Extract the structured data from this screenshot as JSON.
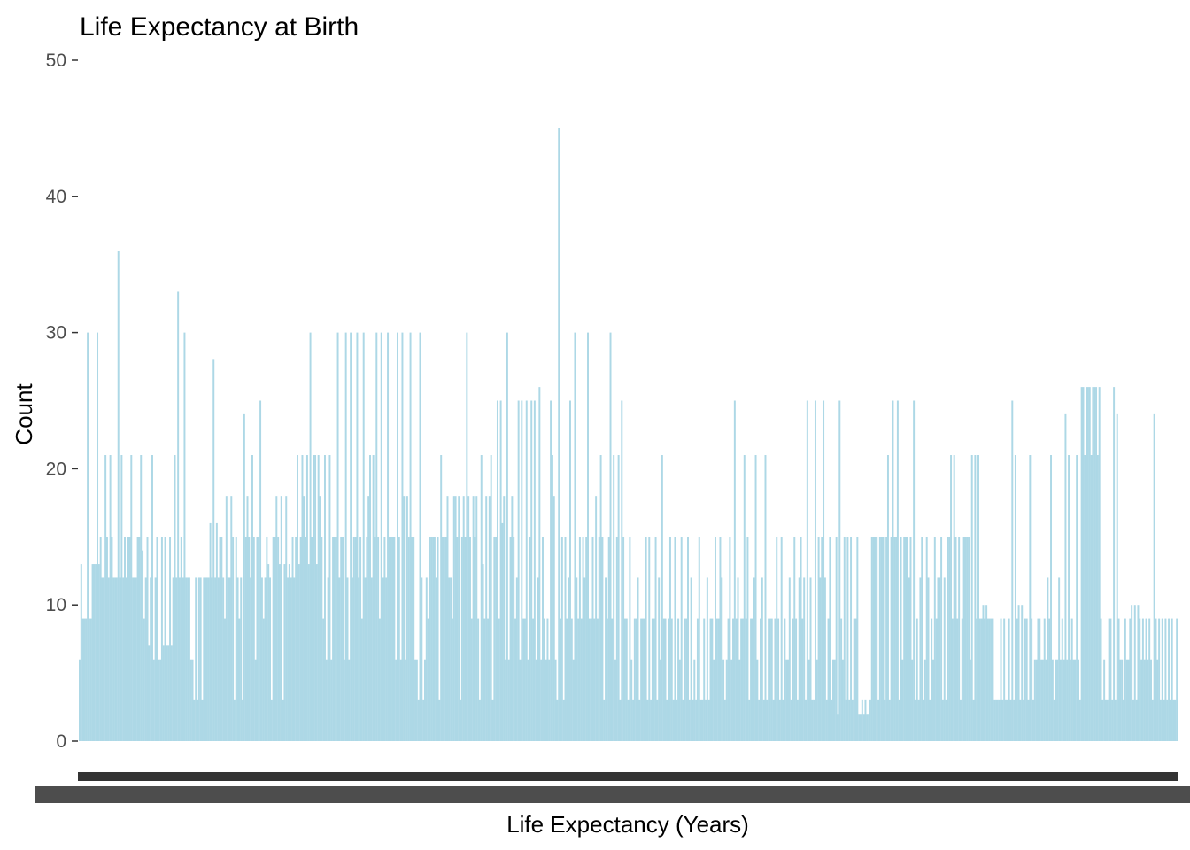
{
  "chart_data": {
    "type": "bar",
    "title": "Life Expectancy at Birth",
    "xlabel": "Life Expectancy (Years)",
    "ylabel": "Count",
    "ylim": [
      0,
      50
    ],
    "yticks": [
      0,
      10,
      20,
      30,
      40,
      50
    ],
    "grid": false,
    "legend": "none",
    "bar_color": "#add8e6",
    "x_tick_color": "#4d4d4d",
    "note": "x-axis tick labels overprint into a solid dark band and are unreadable; categories are individual life-expectancy values (too numerous to read)",
    "values": [
      6,
      13,
      9,
      9,
      9,
      30,
      9,
      9,
      13,
      13,
      13,
      30,
      13,
      15,
      12,
      12,
      21,
      15,
      12,
      21,
      15,
      12,
      12,
      12,
      36,
      12,
      21,
      12,
      15,
      12,
      15,
      15,
      21,
      12,
      12,
      12,
      15,
      15,
      21,
      14,
      9,
      12,
      15,
      7,
      12,
      21,
      6,
      12,
      15,
      6,
      6,
      15,
      7,
      15,
      7,
      7,
      15,
      7,
      12,
      21,
      12,
      33,
      12,
      15,
      12,
      30,
      12,
      12,
      12,
      6,
      6,
      3,
      12,
      3,
      12,
      12,
      3,
      12,
      12,
      12,
      12,
      16,
      12,
      28,
      12,
      16,
      12,
      15,
      15,
      12,
      9,
      18,
      12,
      12,
      18,
      15,
      3,
      15,
      12,
      9,
      12,
      3,
      24,
      15,
      18,
      15,
      12,
      21,
      15,
      6,
      15,
      15,
      25,
      12,
      9,
      12,
      15,
      13,
      12,
      3,
      15,
      15,
      18,
      15,
      13,
      18,
      3,
      13,
      18,
      12,
      13,
      12,
      15,
      12,
      15,
      21,
      13,
      15,
      21,
      18,
      15,
      21,
      13,
      30,
      15,
      21,
      21,
      13,
      21,
      18,
      15,
      9,
      21,
      6,
      12,
      21,
      6,
      15,
      15,
      15,
      30,
      12,
      15,
      15,
      6,
      30,
      12,
      6,
      30,
      12,
      15,
      15,
      30,
      12,
      15,
      9,
      30,
      12,
      15,
      18,
      21,
      12,
      21,
      15,
      30,
      15,
      9,
      30,
      12,
      15,
      12,
      30,
      15,
      15,
      15,
      15,
      6,
      30,
      15,
      6,
      30,
      18,
      6,
      18,
      15,
      30,
      15,
      15,
      6,
      6,
      3,
      30,
      12,
      3,
      6,
      12,
      9,
      15,
      15,
      15,
      15,
      12,
      15,
      3,
      21,
      15,
      15,
      15,
      18,
      12,
      12,
      9,
      18,
      18,
      15,
      18,
      3,
      15,
      18,
      15,
      30,
      18,
      15,
      9,
      18,
      15,
      18,
      9,
      3,
      21,
      13,
      9,
      18,
      9,
      18,
      21,
      3,
      15,
      15,
      25,
      9,
      25,
      16,
      18,
      6,
      30,
      6,
      15,
      18,
      15,
      9,
      12,
      25,
      6,
      25,
      9,
      9,
      25,
      6,
      15,
      25,
      9,
      25,
      6,
      12,
      26,
      6,
      15,
      9,
      6,
      9,
      6,
      25,
      21,
      18,
      6,
      3,
      45,
      9,
      15,
      3,
      15,
      9,
      12,
      25,
      9,
      6,
      30,
      12,
      9,
      15,
      9,
      15,
      12,
      15,
      30,
      9,
      9,
      15,
      9,
      18,
      9,
      15,
      21,
      15,
      3,
      12,
      9,
      15,
      30,
      9,
      21,
      6,
      15,
      21,
      3,
      25,
      15,
      9,
      9,
      3,
      15,
      6,
      3,
      9,
      9,
      12,
      3,
      9,
      9,
      9,
      15,
      3,
      15,
      3,
      9,
      9,
      15,
      3,
      12,
      6,
      21,
      9,
      9,
      3,
      9,
      15,
      9,
      3,
      15,
      3,
      9,
      6,
      15,
      3,
      9,
      9,
      15,
      3,
      12,
      3,
      6,
      3,
      9,
      15,
      3,
      3,
      9,
      3,
      12,
      3,
      9,
      9,
      6,
      15,
      9,
      9,
      15,
      12,
      6,
      3,
      6,
      9,
      15,
      6,
      9,
      25,
      9,
      12,
      6,
      9,
      9,
      21,
      9,
      15,
      3,
      9,
      9,
      12,
      21,
      6,
      3,
      9,
      12,
      3,
      21,
      3,
      9,
      9,
      9,
      3,
      9,
      15,
      9,
      3,
      15,
      3,
      9,
      6,
      6,
      12,
      3,
      9,
      15,
      9,
      3,
      12,
      15,
      9,
      12,
      3,
      25,
      6,
      12,
      3,
      3,
      25,
      6,
      15,
      12,
      15,
      25,
      12,
      3,
      9,
      15,
      3,
      6,
      6,
      15,
      2,
      25,
      9,
      6,
      15,
      3,
      15,
      3,
      15,
      3,
      9,
      9,
      15,
      2,
      2,
      3,
      2,
      3,
      2,
      2,
      3,
      15,
      15,
      15,
      15,
      3,
      15,
      15,
      15,
      3,
      15,
      21,
      3,
      15,
      25,
      15,
      15,
      25,
      3,
      15,
      6,
      15,
      15,
      15,
      12,
      15,
      6,
      25,
      3,
      9,
      3,
      12,
      15,
      3,
      6,
      15,
      12,
      3,
      9,
      6,
      15,
      9,
      12,
      12,
      15,
      3,
      12,
      3,
      15,
      15,
      21,
      9,
      21,
      15,
      9,
      15,
      3,
      9,
      15,
      15,
      15,
      15,
      6,
      21,
      3,
      21,
      9,
      21,
      9,
      9,
      10,
      9,
      10,
      9,
      9,
      9,
      9,
      3,
      3,
      3,
      3,
      9,
      3,
      9,
      3,
      3,
      9,
      3,
      25,
      3,
      21,
      9,
      10,
      3,
      10,
      3,
      9,
      9,
      3,
      21,
      9,
      3,
      6,
      6,
      9,
      9,
      6,
      6,
      9,
      6,
      12,
      9,
      21,
      6,
      3,
      6,
      6,
      12,
      6,
      9,
      6,
      24,
      6,
      21,
      6,
      9,
      6,
      6,
      21,
      6,
      3,
      26,
      26,
      21,
      26,
      26,
      26,
      21,
      26,
      26,
      26,
      21,
      26,
      9,
      3,
      6,
      3,
      3,
      9,
      9,
      3,
      26,
      3,
      24,
      9,
      6,
      6,
      3,
      9,
      6,
      6,
      9,
      10,
      3,
      10,
      3,
      10,
      9,
      6,
      9,
      6,
      9,
      6,
      9,
      6,
      3,
      24,
      9,
      6,
      9,
      3,
      9,
      3,
      9,
      3,
      9,
      3,
      9,
      3,
      3,
      9
    ]
  }
}
